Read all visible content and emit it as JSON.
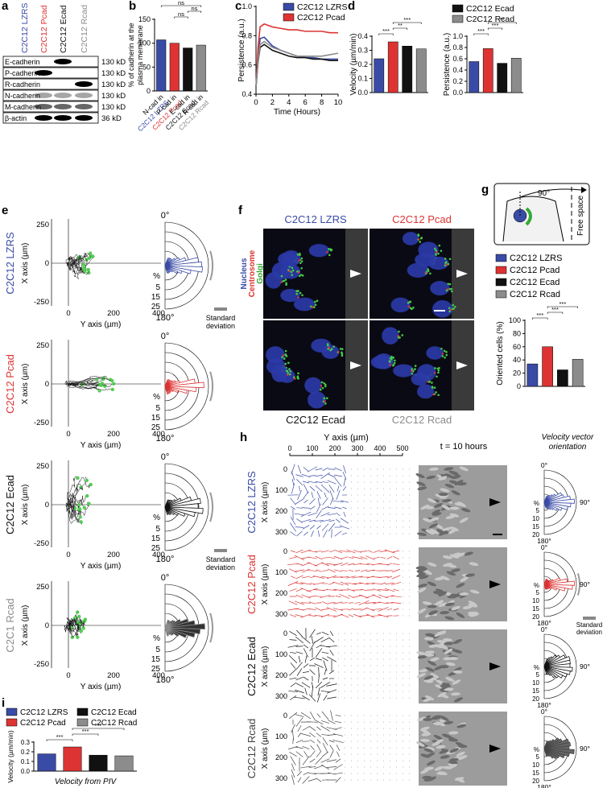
{
  "panel_labels": [
    "a",
    "b",
    "c",
    "d",
    "e",
    "f",
    "g",
    "h",
    "i"
  ],
  "blot": {
    "lanes": [
      "C2C12 LZRS",
      "C2C12 Pcad",
      "C2C12 Ecad",
      "C2C12 Rcad"
    ],
    "lane_colors": [
      "#3a4ba6",
      "#dd3333",
      "#111111",
      "#8c8c8c"
    ],
    "rows": [
      {
        "name": "E-cadherin",
        "size": "130 kD"
      },
      {
        "name": "P-cadherin",
        "size": "130 kD"
      },
      {
        "name": "R-cadherin",
        "size": "130 kD"
      },
      {
        "name": "N-cadherin",
        "size": "130 kD"
      },
      {
        "name": "M-cadherin",
        "size": "130 kD"
      },
      {
        "name": "β-actin",
        "size": "36 kD"
      }
    ]
  },
  "chart_data": [
    {
      "type": "bar",
      "ylabel": [
        "% of cadherin at the",
        "plasma membrane"
      ],
      "categories": [
        {
          "line1": "N-cad in",
          "line2": "C2C12 LZRS"
        },
        {
          "line1": "P-cad in",
          "line2": "C2C12 Pcad"
        },
        {
          "line1": "E-cad in",
          "line2": "C2C12 Ecad"
        },
        {
          "line1": "R-cad in",
          "line2": "C2C12 Rcad"
        }
      ],
      "values": [
        107,
        100,
        90,
        96
      ],
      "colors": [
        "#3a4ba6",
        "#dd3333",
        "#111111",
        "#8c8c8c"
      ],
      "ylim": [
        0,
        150
      ],
      "yticks": [
        0,
        50,
        100,
        150
      ],
      "annotations": [
        "ns",
        "ns",
        "ns"
      ]
    },
    {
      "type": "line",
      "ylabel": [
        "Persistence (a.u.)"
      ],
      "xlabel": "Time (Hours)",
      "x": [
        0,
        0.25,
        0.5,
        1,
        1.5,
        2,
        3,
        4,
        5,
        6,
        7,
        8,
        9,
        10
      ],
      "xlim": [
        0,
        10
      ],
      "xticks": [
        0,
        2,
        4,
        6,
        8,
        10
      ],
      "ylim": [
        0.4,
        1
      ],
      "yticks": [
        0.4,
        0.6,
        0.8,
        {
          "value": 1,
          "label": "1.0"
        }
      ],
      "series": [
        {
          "name": "C2C12 LZRS",
          "color": "#3a4ba6",
          "values": [
            0.45,
            0.65,
            0.78,
            0.79,
            0.76,
            0.73,
            0.7,
            0.68,
            0.66,
            0.65,
            0.65,
            0.64,
            0.64,
            0.64
          ]
        },
        {
          "name": "C2C12 Pcad",
          "color": "#dd3333",
          "values": [
            0.45,
            0.72,
            0.86,
            0.88,
            0.87,
            0.86,
            0.85,
            0.84,
            0.84,
            0.83,
            0.83,
            0.83,
            0.82,
            0.82
          ]
        },
        {
          "color": "#111111",
          "values": [
            0.45,
            0.62,
            0.72,
            0.74,
            0.72,
            0.7,
            0.68,
            0.66,
            0.65,
            0.65,
            0.64,
            0.64,
            0.63,
            0.63
          ]
        },
        {
          "color": "#8c8c8c",
          "values": [
            0.45,
            0.63,
            0.74,
            0.76,
            0.74,
            0.72,
            0.7,
            0.68,
            0.66,
            0.66,
            0.66,
            0.66,
            0.67,
            0.68
          ]
        }
      ]
    },
    {
      "type": "bar",
      "ylabel": [
        "Velocity (µm/min)"
      ],
      "values": [
        0.24,
        0.36,
        0.33,
        0.31
      ],
      "colors": [
        "#3a4ba6",
        "#dd3333",
        "#111111",
        "#8c8c8c"
      ],
      "ylim": [
        0,
        0.4
      ],
      "yticks": [
        {
          "value": 0,
          "label": "0.0"
        },
        0.1,
        0.2,
        0.3,
        0.4
      ],
      "annotations": [
        "***",
        "**",
        "***"
      ],
      "legend": [
        {
          "name": "C2C12 Ecad",
          "color": "#111111"
        },
        {
          "name": "C2C12 Rcad",
          "color": "#8c8c8c"
        }
      ]
    },
    {
      "type": "bar",
      "ylabel": [
        "Persistence (a.u.)"
      ],
      "values": [
        0.55,
        0.78,
        0.52,
        0.61
      ],
      "colors": [
        "#3a4ba6",
        "#dd3333",
        "#111111",
        "#8c8c8c"
      ],
      "ylim": [
        0,
        1
      ],
      "yticks": [
        {
          "value": 0,
          "label": "0.0"
        },
        0.2,
        0.4,
        0.6,
        0.8,
        {
          "value": 1,
          "label": "1.0"
        }
      ],
      "annotations": [
        "***",
        "***",
        "**"
      ]
    },
    {
      "type": "bar",
      "ylabel": [
        "Oriented cells (%)"
      ],
      "values": [
        34,
        60,
        25,
        41
      ],
      "colors": [
        "#3a4ba6",
        "#dd3333",
        "#111111",
        "#8c8c8c"
      ],
      "ylim": [
        0,
        100
      ],
      "yticks": [
        0,
        20,
        40,
        60,
        80,
        100
      ],
      "annotations": [
        "***",
        "***",
        "***"
      ],
      "legend": [
        {
          "name": "C2C12 LZRS",
          "color": "#3a4ba6"
        },
        {
          "name": "C2C12 Pcad",
          "color": "#dd3333"
        },
        {
          "name": "C2C12 Ecad",
          "color": "#111111"
        },
        {
          "name": "C2C12 Rcad",
          "color": "#8c8c8c"
        }
      ]
    },
    {
      "type": "bar",
      "ylabel": [
        "Velocity (µm/min)"
      ],
      "xlabel": "Velocity from PIV",
      "values": [
        0.178,
        0.25,
        0.165,
        0.158
      ],
      "colors": [
        "#3a4ba6",
        "#dd3333",
        "#111111",
        "#8c8c8c"
      ],
      "ylim": [
        0,
        0.3
      ],
      "yticks": [
        {
          "value": 0,
          "label": "0.0"
        },
        0.1,
        0.2,
        0.3
      ],
      "annotations": [
        "***",
        "***",
        "***"
      ],
      "legend": [
        {
          "name": "C2C12 LZRS",
          "color": "#3a4ba6"
        },
        {
          "name": "C2C12 Ecad",
          "color": "#111111"
        },
        {
          "name": "C2C12 Pcad",
          "color": "#dd3333"
        },
        {
          "name": "C2C12 Rcad",
          "color": "#8c8c8c"
        }
      ]
    }
  ],
  "panel_e": {
    "y_label": "X axis (µm)",
    "x_label": "Y axis (µm)",
    "y_ticks": [
      250,
      0,
      -250
    ],
    "x_ticks": [
      0,
      200,
      400
    ],
    "rose_top": "0°",
    "rose_bottom": "180°",
    "rose_unit": "%",
    "rose_ticks": [
      5,
      15,
      25
    ],
    "rows": [
      {
        "label": "C2C12 LZRS",
        "color": "#3a4ba6",
        "std_label": [
          "Standard",
          "deviation"
        ]
      },
      {
        "label": "C2C12 Pcad",
        "color": "#dd3333"
      },
      {
        "label": "C2C12 Ecad",
        "color": "#111111",
        "std_label": [
          "Standard",
          "deviation"
        ]
      },
      {
        "label": "C2C1 Rcad",
        "color": "#8c8c8c"
      }
    ]
  },
  "panel_f": {
    "top": [
      {
        "label": "C2C12 LZRS",
        "color": "#3a4ba6"
      },
      {
        "label": "C2C12 Pcad",
        "color": "#dd3333"
      }
    ],
    "bottom": [
      {
        "label": "C2C12 Ecad",
        "color": "#111111"
      },
      {
        "label": "C2C12 Rcad",
        "color": "#8c8c8c"
      }
    ],
    "stains": [
      {
        "label": "Nucleus",
        "color": "#3a4ba6"
      },
      {
        "label": "Centrosome",
        "color": "#dd3333"
      },
      {
        "label": "Golgi",
        "color": "#33aa33"
      }
    ]
  },
  "panel_g": {
    "angle": "90°",
    "free_space": "Free space"
  },
  "panel_h": {
    "x_label": "Y axis (µm)",
    "x_ticks": [
      0,
      100,
      200,
      300,
      400,
      500
    ],
    "time": "t = 10 hours",
    "rose_title": [
      "Velocity vector",
      "orientation"
    ],
    "y_label": "X axis (µm)",
    "y_ticks": [
      0,
      100,
      200,
      300
    ],
    "rose_top": "0°",
    "rose_right": "90°",
    "rose_bottom": "180°",
    "rose_unit": "%",
    "rose_ticks": [
      5,
      10,
      15,
      20
    ],
    "rows": [
      {
        "label": "C2C12 LZRS",
        "color": "#3a4ba6"
      },
      {
        "label": "C2C12 Pcad",
        "color": "#dd3333",
        "std_label": [
          "Standard",
          "deviation"
        ]
      },
      {
        "label": "C2C12 Ecad",
        "color": "#111111"
      },
      {
        "label": "C2C12 Rcad",
        "color": "#444444"
      }
    ]
  }
}
